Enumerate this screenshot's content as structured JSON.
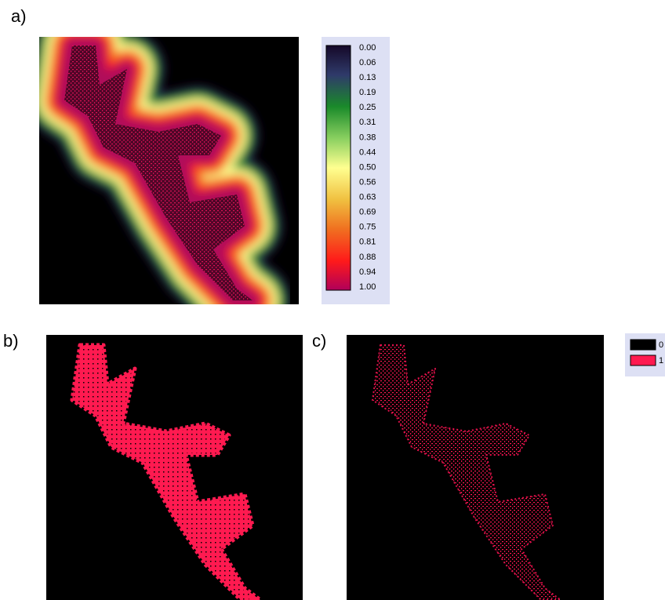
{
  "panels": {
    "a": {
      "label": "a)"
    },
    "b": {
      "label": "b)"
    },
    "c": {
      "label": "c)"
    }
  },
  "colorbar": {
    "labels": [
      "0.00",
      "0.06",
      "0.13",
      "0.19",
      "0.25",
      "0.31",
      "0.38",
      "0.44",
      "0.50",
      "0.56",
      "0.63",
      "0.69",
      "0.75",
      "0.81",
      "0.88",
      "0.94",
      "1.00"
    ]
  },
  "legend": {
    "items": [
      "0",
      "1"
    ]
  }
}
